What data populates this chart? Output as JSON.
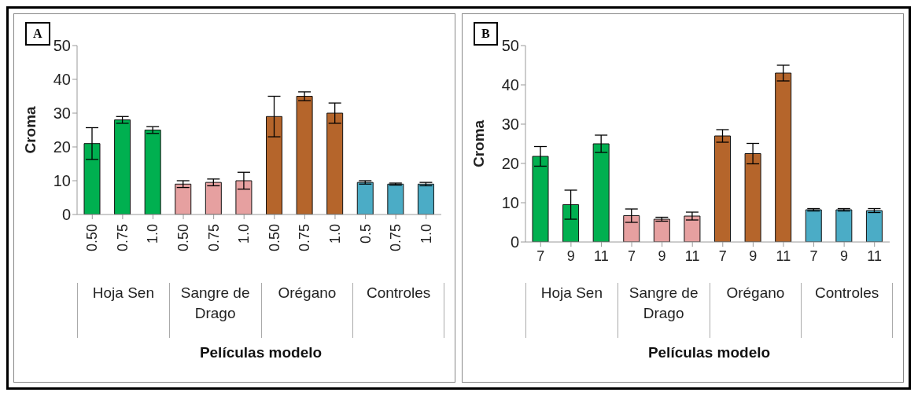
{
  "chart_data": [
    {
      "type": "bar",
      "title": "A",
      "ylabel": "Croma",
      "xlabel": "Películas modelo",
      "categories": [
        "0.50",
        "0.75",
        "1.0",
        "0.50",
        "0.75",
        "1.0",
        "0.50",
        "0.75",
        "1.0",
        "0.5",
        "0.75",
        "1.0"
      ],
      "values": [
        21,
        28,
        25,
        9,
        9.5,
        10,
        29,
        35,
        30,
        9.5,
        9,
        9
      ],
      "errors": [
        4.7,
        1,
        1,
        1,
        1,
        2.5,
        6,
        1.3,
        3,
        0.5,
        0.3,
        0.5
      ],
      "colors": [
        "#00b050",
        "#00b050",
        "#00b050",
        "#e6a0a0",
        "#e6a0a0",
        "#e6a0a0",
        "#b5652b",
        "#b5652b",
        "#b5652b",
        "#4bacc6",
        "#4bacc6",
        "#4bacc6"
      ],
      "ylim": [
        0,
        50
      ],
      "yticks": [
        0,
        10,
        20,
        30,
        40,
        50
      ],
      "annotations": [
        "Hoja Sen",
        "Sangre de Drago",
        "Orégano",
        "Controles"
      ]
    },
    {
      "type": "bar",
      "title": "B",
      "ylabel": "Croma",
      "xlabel": "Películas modelo",
      "categories": [
        "7",
        "9",
        "11",
        "7",
        "9",
        "11",
        "7",
        "9",
        "11",
        "7",
        "9",
        "11"
      ],
      "values": [
        21.8,
        9.5,
        25,
        6.7,
        5.8,
        6.6,
        27,
        22.5,
        43,
        8.2,
        8.2,
        8
      ],
      "errors": [
        2.5,
        3.7,
        2.2,
        1.7,
        0.5,
        1,
        1.6,
        2.6,
        2,
        0.3,
        0.3,
        0.5
      ],
      "colors": [
        "#00b050",
        "#00b050",
        "#00b050",
        "#e6a0a0",
        "#e6a0a0",
        "#e6a0a0",
        "#b5652b",
        "#b5652b",
        "#b5652b",
        "#4bacc6",
        "#4bacc6",
        "#4bacc6"
      ],
      "ylim": [
        0,
        50
      ],
      "yticks": [
        0,
        10,
        20,
        30,
        40,
        50
      ],
      "annotations": [
        "Hoja Sen",
        "Sangre de Drago",
        "Orégano",
        "Controles"
      ]
    }
  ]
}
